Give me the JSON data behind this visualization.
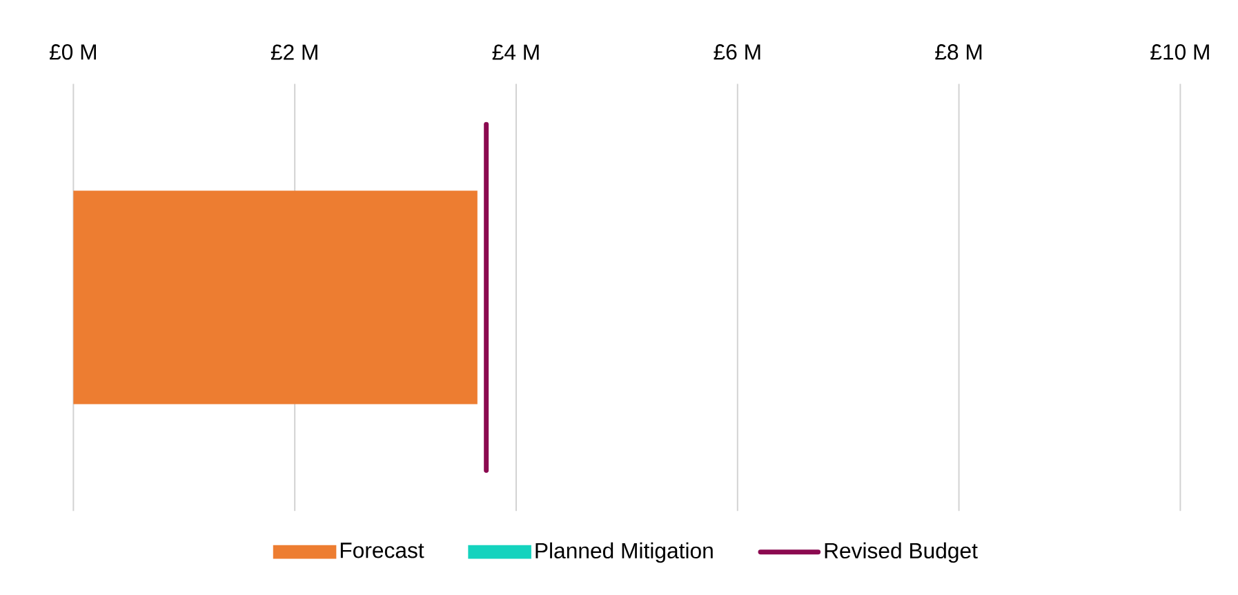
{
  "chart_data": {
    "type": "bar",
    "orientation": "horizontal",
    "stacked": true,
    "categories": [
      null
    ],
    "series": [
      {
        "name": "Forecast",
        "color": "#ed7d31",
        "values": [
          3.65
        ]
      },
      {
        "name": "Planned Mitigation",
        "color": "#14d3be",
        "values": [
          0
        ]
      }
    ],
    "ref_lines": [
      {
        "axis": "x",
        "value": 3.73,
        "label": "Revised Budget",
        "color": "#8b0a50"
      }
    ],
    "xlim": [
      0,
      10
    ],
    "xticks": [
      {
        "value": 0,
        "label": "£0 M"
      },
      {
        "value": 2,
        "label": "£2 M"
      },
      {
        "value": 4,
        "label": "£4 M"
      },
      {
        "value": 6,
        "label": "£6 M"
      },
      {
        "value": 8,
        "label": "£8 M"
      },
      {
        "value": 10,
        "label": "£10 M"
      }
    ],
    "grid": "x",
    "legend": "bottom"
  }
}
